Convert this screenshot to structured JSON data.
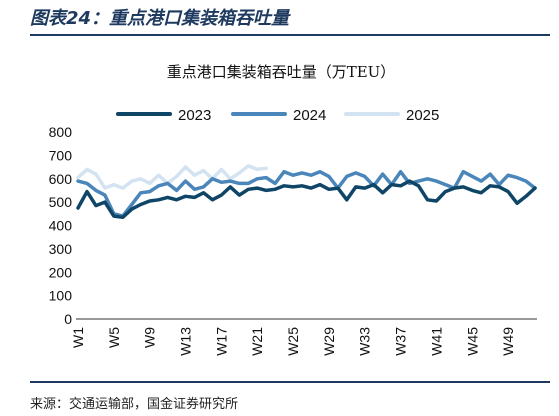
{
  "figure_title": "图表24：重点港口集装箱吞吐量",
  "source": "来源：交通运输部，国金证券研究所",
  "colors": {
    "2023": "#0f4566",
    "2024": "#4a86ba",
    "2025": "#d3e3f1",
    "title": "#1f3a5f"
  },
  "chart_data": {
    "type": "line",
    "title": "重点港口集装箱吞吐量（万TEU）",
    "legend_position": "top",
    "grid": false,
    "ylim": [
      0,
      800
    ],
    "yticks": [
      0,
      100,
      200,
      300,
      400,
      500,
      600,
      700,
      800
    ],
    "xlim": [
      1,
      52
    ],
    "xticks": [
      "W1",
      "W5",
      "W9",
      "W13",
      "W17",
      "W21",
      "W25",
      "W29",
      "W33",
      "W37",
      "W41",
      "W45",
      "W49"
    ],
    "xtick_weeks": [
      1,
      5,
      9,
      13,
      17,
      21,
      25,
      29,
      33,
      37,
      41,
      45,
      49
    ],
    "series": [
      {
        "name": "2023",
        "x": [
          1,
          2,
          3,
          4,
          5,
          6,
          7,
          8,
          9,
          10,
          11,
          12,
          13,
          14,
          15,
          16,
          17,
          18,
          19,
          20,
          21,
          22,
          23,
          24,
          25,
          26,
          27,
          28,
          29,
          30,
          31,
          32,
          33,
          34,
          35,
          36,
          37,
          38,
          39,
          40,
          41,
          42,
          43,
          44,
          45,
          46,
          47,
          48,
          49,
          50,
          51,
          52
        ],
        "values": [
          475,
          545,
          485,
          500,
          440,
          435,
          470,
          490,
          505,
          510,
          520,
          510,
          525,
          520,
          540,
          510,
          530,
          565,
          530,
          555,
          560,
          550,
          555,
          570,
          565,
          570,
          560,
          575,
          555,
          560,
          510,
          565,
          560,
          575,
          540,
          575,
          570,
          590,
          570,
          510,
          505,
          545,
          560,
          565,
          550,
          540,
          570,
          565,
          545,
          495,
          525,
          560
        ]
      },
      {
        "name": "2024",
        "x": [
          1,
          2,
          3,
          4,
          5,
          6,
          7,
          8,
          9,
          10,
          11,
          12,
          13,
          14,
          15,
          16,
          17,
          18,
          19,
          20,
          21,
          22,
          23,
          24,
          25,
          26,
          27,
          28,
          29,
          30,
          31,
          32,
          33,
          34,
          35,
          36,
          37,
          38,
          39,
          40,
          41,
          42,
          43,
          44,
          45,
          46,
          47,
          48,
          49,
          50,
          51,
          52
        ],
        "values": [
          590,
          580,
          550,
          530,
          450,
          440,
          490,
          540,
          545,
          570,
          580,
          550,
          590,
          555,
          565,
          600,
          585,
          590,
          580,
          580,
          600,
          605,
          580,
          630,
          615,
          625,
          615,
          630,
          610,
          560,
          610,
          625,
          610,
          570,
          620,
          575,
          630,
          580,
          590,
          600,
          590,
          575,
          560,
          630,
          610,
          590,
          620,
          575,
          615,
          605,
          590,
          560
        ]
      },
      {
        "name": "2025",
        "x": [
          1,
          2,
          3,
          4,
          5,
          6,
          7,
          8,
          9,
          10,
          11,
          12,
          13,
          14,
          15,
          16,
          17,
          18,
          19,
          20,
          21,
          22
        ],
        "values": [
          605,
          640,
          620,
          560,
          575,
          560,
          590,
          600,
          580,
          615,
          580,
          610,
          650,
          615,
          635,
          600,
          640,
          600,
          625,
          655,
          640,
          645
        ]
      }
    ]
  }
}
